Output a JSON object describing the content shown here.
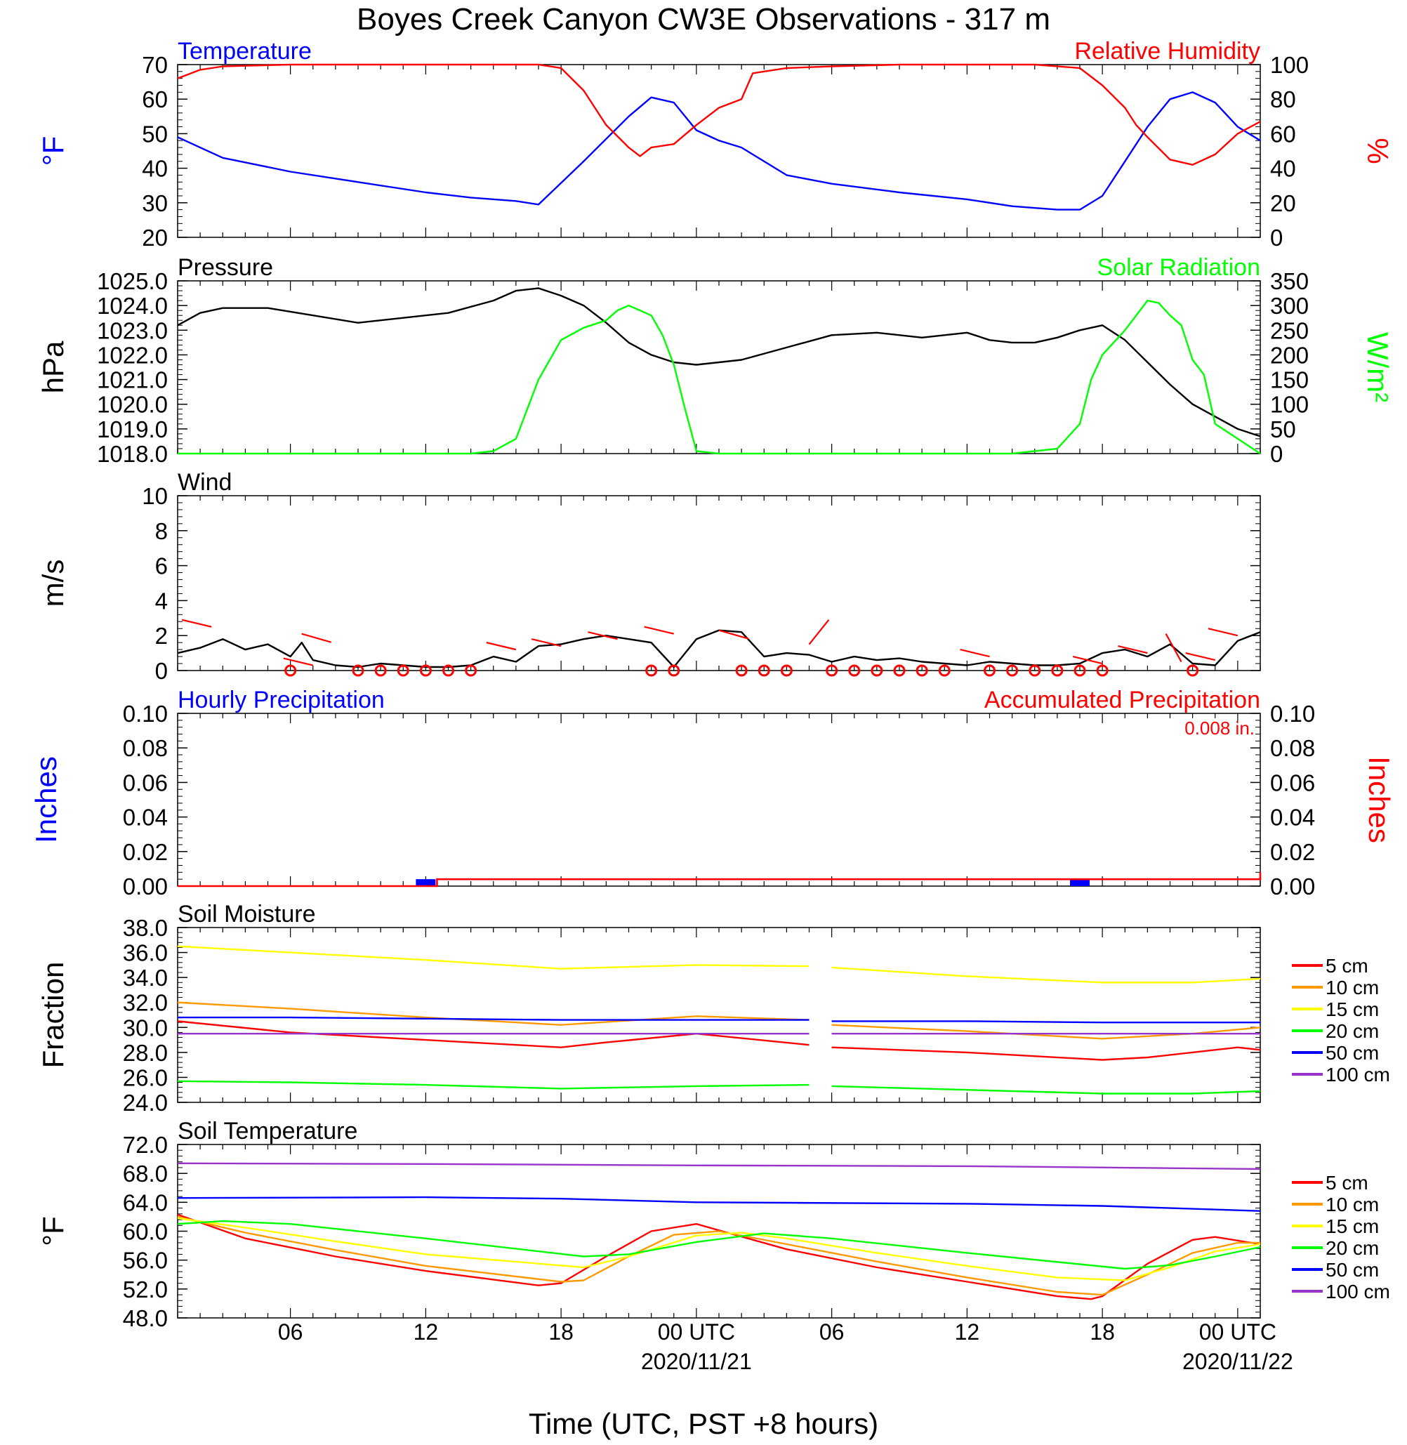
{
  "title": "Boyes Creek Canyon CW3E Observations - 317 m",
  "x_axis": {
    "label": "Time (UTC, PST +8 hours)",
    "ticks": [
      "06",
      "12",
      "18",
      "00 UTC",
      "06",
      "12",
      "18",
      "00 UTC"
    ],
    "tick_hours": [
      6,
      12,
      18,
      24,
      30,
      36,
      42,
      48
    ],
    "dates": [
      "2020/11/21",
      "2020/11/22"
    ],
    "date_hours": [
      24,
      48
    ],
    "range_hours": [
      1,
      49
    ]
  },
  "colors": {
    "temperature": "#0000ff",
    "relative_humidity": "#ff0000",
    "pressure": "#000000",
    "solar": "#00ff00",
    "wind": "#000000",
    "barb": "#ff0000",
    "hourly_precip": "#0000ff",
    "accum_precip": "#ff0000",
    "depth_5cm": "#ff0000",
    "depth_10cm": "#ff9900",
    "depth_15cm": "#ffff00",
    "depth_20cm": "#00ff00",
    "depth_50cm": "#0000ff",
    "depth_100cm": "#9933cc"
  },
  "chart_data": [
    {
      "id": "temp_rh",
      "type": "line",
      "left_label": "Temperature",
      "right_label": "Relative Humidity",
      "ylabel_left": "°F",
      "ylabel_right": "%",
      "ylim_left": [
        20,
        70
      ],
      "ylim_right": [
        0,
        100
      ],
      "yticks_left": [
        "20",
        "30",
        "40",
        "50",
        "60",
        "70"
      ],
      "yticks_right": [
        "0",
        "20",
        "40",
        "60",
        "80",
        "100"
      ],
      "series": [
        {
          "name": "Temperature",
          "axis": "left",
          "color": "#0000ff",
          "x": [
            1,
            3,
            6,
            9,
            12,
            14,
            16,
            17,
            19,
            21,
            22,
            23,
            24,
            25,
            26,
            28,
            30,
            33,
            36,
            38,
            40,
            41,
            42,
            43,
            44,
            45,
            46,
            47,
            48,
            49
          ],
          "y": [
            49,
            43,
            39,
            36,
            33,
            31.5,
            30.5,
            29.5,
            42,
            55,
            60.5,
            59,
            51,
            48,
            46,
            38,
            35.5,
            33,
            31,
            29,
            28,
            28,
            32,
            42,
            52,
            60,
            62,
            59,
            52,
            48
          ]
        },
        {
          "name": "Relative Humidity",
          "axis": "right",
          "color": "#ff0000",
          "x": [
            1,
            2,
            3,
            6,
            9,
            12,
            15,
            17,
            18,
            19,
            20,
            21,
            21.5,
            22,
            23,
            24,
            25,
            26,
            26.5,
            28,
            30,
            33,
            36,
            39,
            41,
            42,
            43,
            43.5,
            44,
            45,
            46,
            47,
            48,
            49
          ],
          "y": [
            92,
            97,
            99,
            100,
            100,
            100,
            100,
            100,
            98,
            85,
            65,
            52,
            47,
            52,
            54,
            65,
            75,
            80,
            95,
            98,
            99,
            100,
            100,
            100,
            98,
            88,
            75,
            65,
            58,
            45,
            42,
            48,
            60,
            67
          ]
        }
      ]
    },
    {
      "id": "pressure_solar",
      "type": "line",
      "left_label": "Pressure",
      "right_label": "Solar Radiation",
      "ylabel_left": "hPa",
      "ylabel_right": "W/m²",
      "ylim_left": [
        1018,
        1025
      ],
      "ylim_right": [
        0,
        350
      ],
      "yticks_left": [
        "1018.0",
        "1019.0",
        "1020.0",
        "1021.0",
        "1022.0",
        "1023.0",
        "1024.0",
        "1025.0"
      ],
      "yticks_right": [
        "0",
        "50",
        "100",
        "150",
        "200",
        "250",
        "300",
        "350"
      ],
      "series": [
        {
          "name": "Pressure",
          "axis": "left",
          "color": "#000000",
          "x": [
            1,
            2,
            3,
            5,
            7,
            9,
            11,
            13,
            15,
            16,
            17,
            18,
            19,
            20,
            21,
            22,
            23,
            24,
            26,
            28,
            30,
            32,
            34,
            36,
            37,
            38,
            39,
            40,
            41,
            42,
            43,
            44,
            45,
            46,
            47,
            48,
            49
          ],
          "y": [
            1023.2,
            1023.7,
            1023.9,
            1023.9,
            1023.6,
            1023.3,
            1023.5,
            1023.7,
            1024.2,
            1024.6,
            1024.7,
            1024.4,
            1024.0,
            1023.3,
            1022.5,
            1022.0,
            1021.7,
            1021.6,
            1021.8,
            1022.3,
            1022.8,
            1022.9,
            1022.7,
            1022.9,
            1022.6,
            1022.5,
            1022.5,
            1022.7,
            1023.0,
            1023.2,
            1022.6,
            1021.7,
            1020.8,
            1020.0,
            1019.5,
            1019.0,
            1018.7
          ]
        },
        {
          "name": "Solar Radiation",
          "axis": "right",
          "color": "#00ff00",
          "x": [
            1,
            14,
            15,
            16,
            17,
            17.5,
            18,
            19,
            20,
            20.5,
            21,
            22,
            22.5,
            23,
            23.5,
            24,
            25,
            26,
            33,
            38,
            40,
            41,
            41.5,
            42,
            43,
            44,
            44.5,
            45,
            45.5,
            46,
            46.5,
            47,
            48,
            49
          ],
          "y": [
            0,
            0,
            5,
            30,
            150,
            190,
            230,
            255,
            270,
            290,
            300,
            280,
            240,
            180,
            90,
            5,
            0,
            0,
            0,
            0,
            10,
            60,
            150,
            200,
            250,
            310,
            305,
            280,
            260,
            190,
            160,
            60,
            30,
            0
          ]
        }
      ]
    },
    {
      "id": "wind",
      "type": "line",
      "left_label": "Wind",
      "ylabel_left": "m/s",
      "ylim_left": [
        0,
        10
      ],
      "yticks_left": [
        "0",
        "2",
        "4",
        "6",
        "8",
        "10"
      ],
      "series": [
        {
          "name": "Wind",
          "axis": "left",
          "color": "#000000",
          "x": [
            1,
            2,
            3,
            4,
            5,
            6,
            6.5,
            7,
            8,
            9,
            10,
            11,
            12,
            13,
            14,
            15,
            16,
            17,
            18,
            19,
            20,
            21,
            22,
            23,
            24,
            25,
            26,
            27,
            28,
            29,
            30,
            31,
            32,
            33,
            34,
            35,
            36,
            37,
            38,
            39,
            40,
            41,
            42,
            43,
            44,
            45,
            46,
            47,
            48,
            49
          ],
          "y": [
            1.0,
            1.3,
            1.8,
            1.2,
            1.5,
            0.8,
            1.6,
            0.6,
            0.3,
            0.2,
            0.4,
            0.3,
            0.2,
            0.2,
            0.3,
            0.8,
            0.5,
            1.4,
            1.5,
            1.8,
            2.0,
            1.8,
            1.6,
            0.2,
            1.8,
            2.3,
            2.2,
            0.8,
            1.0,
            0.9,
            0.5,
            0.8,
            0.6,
            0.7,
            0.5,
            0.4,
            0.3,
            0.5,
            0.4,
            0.3,
            0.3,
            0.4,
            1.0,
            1.2,
            0.8,
            1.5,
            0.4,
            0.3,
            1.7,
            2.2
          ]
        }
      ],
      "barbs": [
        {
          "x": 2.5,
          "y": 2.5,
          "dir": "l"
        },
        {
          "x": 6.5,
          "y": 2.1,
          "dir": "r"
        },
        {
          "x": 7,
          "y": 0.3,
          "dir": "l"
        },
        {
          "x": 16,
          "y": 1.2,
          "dir": "l"
        },
        {
          "x": 18,
          "y": 1.4,
          "dir": "l"
        },
        {
          "x": 20.5,
          "y": 1.8,
          "dir": "l"
        },
        {
          "x": 23,
          "y": 2.1,
          "dir": "l"
        },
        {
          "x": 25,
          "y": 2.3,
          "dir": "r"
        },
        {
          "x": 29,
          "y": 1.5,
          "dir": "u"
        },
        {
          "x": 37,
          "y": 0.8,
          "dir": "l"
        },
        {
          "x": 42,
          "y": 0.4,
          "dir": "l"
        },
        {
          "x": 44,
          "y": 1.0,
          "dir": "l"
        },
        {
          "x": 45.5,
          "y": 0.5,
          "dir": "d"
        },
        {
          "x": 47,
          "y": 0.6,
          "dir": "l"
        },
        {
          "x": 48,
          "y": 2.0,
          "dir": "l"
        }
      ],
      "calm_hours": [
        6,
        9,
        10,
        11,
        12,
        13,
        14,
        22,
        23,
        26,
        27,
        28,
        30,
        31,
        32,
        33,
        34,
        35,
        37,
        38,
        39,
        40,
        41,
        42,
        46
      ]
    },
    {
      "id": "precip",
      "type": "bar",
      "left_label": "Hourly Precipitation",
      "right_label": "Accumulated Precipitation",
      "annotation": "0.008 in.",
      "ylabel_left": "Inches",
      "ylabel_right": "Inches",
      "ylim_left": [
        0,
        0.1
      ],
      "ylim_right": [
        0,
        0.1
      ],
      "yticks_left": [
        "0.00",
        "0.02",
        "0.04",
        "0.06",
        "0.08",
        "0.10"
      ],
      "yticks_right": [
        "0.00",
        "0.02",
        "0.04",
        "0.06",
        "0.08",
        "0.10"
      ],
      "hourly": [
        {
          "x": 12,
          "value": 0.004
        },
        {
          "x": 41,
          "value": 0.004
        }
      ],
      "accumulated": {
        "x": [
          1,
          12,
          12.5,
          42,
          49
        ],
        "y": [
          0,
          0,
          0.004,
          0.004,
          0.008
        ]
      }
    },
    {
      "id": "soil_moisture",
      "type": "line",
      "left_label": "Soil Moisture",
      "ylabel_left": "Fraction",
      "ylim_left": [
        24,
        38
      ],
      "yticks_left": [
        "24.0",
        "26.0",
        "28.0",
        "30.0",
        "32.0",
        "34.0",
        "36.0",
        "38.0"
      ],
      "gap_hours": [
        29,
        30
      ],
      "legend": [
        "5 cm",
        "10 cm",
        "15 cm",
        "20 cm",
        "50 cm",
        "100 cm"
      ],
      "series": [
        {
          "name": "5 cm",
          "color": "#ff0000",
          "x": [
            1,
            6,
            12,
            18,
            20,
            24,
            29,
            30,
            36,
            42,
            44,
            48,
            49
          ],
          "y": [
            30.5,
            29.6,
            29.0,
            28.4,
            28.8,
            29.5,
            28.6,
            28.4,
            28.0,
            27.4,
            27.6,
            28.4,
            28.2
          ]
        },
        {
          "name": "10 cm",
          "color": "#ff9900",
          "x": [
            1,
            6,
            12,
            18,
            24,
            29,
            30,
            36,
            42,
            46,
            49
          ],
          "y": [
            32.0,
            31.5,
            30.8,
            30.2,
            30.9,
            30.6,
            30.2,
            29.7,
            29.1,
            29.5,
            30.0
          ]
        },
        {
          "name": "15 cm",
          "color": "#ffff00",
          "x": [
            1,
            6,
            12,
            18,
            24,
            29,
            30,
            36,
            42,
            46,
            49
          ],
          "y": [
            36.5,
            36.0,
            35.4,
            34.7,
            35.0,
            34.9,
            34.8,
            34.1,
            33.6,
            33.6,
            33.9
          ]
        },
        {
          "name": "20 cm",
          "color": "#00ff00",
          "x": [
            1,
            6,
            12,
            18,
            24,
            29,
            30,
            36,
            42,
            46,
            49
          ],
          "y": [
            25.7,
            25.6,
            25.4,
            25.1,
            25.3,
            25.4,
            25.3,
            25.0,
            24.7,
            24.7,
            24.9
          ]
        },
        {
          "name": "50 cm",
          "color": "#0000ff",
          "x": [
            1,
            6,
            12,
            18,
            24,
            29,
            30,
            36,
            42,
            49
          ],
          "y": [
            30.8,
            30.8,
            30.7,
            30.6,
            30.6,
            30.6,
            30.5,
            30.5,
            30.4,
            30.4
          ]
        },
        {
          "name": "100 cm",
          "color": "#9933cc",
          "x": [
            1,
            6,
            12,
            18,
            24,
            29,
            30,
            36,
            42,
            49
          ],
          "y": [
            29.5,
            29.5,
            29.5,
            29.5,
            29.5,
            29.5,
            29.5,
            29.5,
            29.5,
            29.5
          ]
        }
      ]
    },
    {
      "id": "soil_temperature",
      "type": "line",
      "left_label": "Soil Temperature",
      "ylabel_left": "°F",
      "ylim_left": [
        48,
        72
      ],
      "yticks_left": [
        "48.0",
        "52.0",
        "56.0",
        "60.0",
        "64.0",
        "68.0",
        "72.0"
      ],
      "legend": [
        "5 cm",
        "10 cm",
        "15 cm",
        "20 cm",
        "50 cm",
        "100 cm"
      ],
      "series": [
        {
          "name": "5 cm",
          "color": "#ff0000",
          "x": [
            1,
            4,
            8,
            12,
            17,
            18,
            20,
            22,
            24,
            28,
            32,
            36,
            40,
            41.5,
            42,
            44,
            46,
            47,
            49
          ],
          "y": [
            62.3,
            59.0,
            56.5,
            54.5,
            52.5,
            52.8,
            56.5,
            60.0,
            61.0,
            57.5,
            55.0,
            53.0,
            51.0,
            50.6,
            51.0,
            55.5,
            58.8,
            59.2,
            58.2
          ]
        },
        {
          "name": "10 cm",
          "color": "#ff9900",
          "x": [
            1,
            4,
            8,
            12,
            18,
            19,
            21,
            23,
            25,
            28,
            32,
            36,
            40,
            42,
            44,
            46,
            48,
            49
          ],
          "y": [
            62.0,
            59.8,
            57.4,
            55.2,
            53.0,
            53.2,
            56.5,
            59.5,
            60.0,
            58.2,
            55.8,
            53.6,
            51.6,
            51.2,
            54.0,
            57.0,
            58.4,
            58.4
          ]
        },
        {
          "name": "15 cm",
          "color": "#ffff00",
          "x": [
            1,
            4,
            8,
            12,
            19,
            21,
            24,
            26,
            28,
            32,
            36,
            40,
            43,
            45,
            47,
            49
          ],
          "y": [
            61.8,
            60.5,
            58.6,
            56.8,
            55.0,
            56.5,
            59.4,
            59.8,
            59.0,
            57.0,
            55.2,
            53.6,
            53.2,
            55.0,
            57.2,
            58.2
          ]
        },
        {
          "name": "20 cm",
          "color": "#00ff00",
          "x": [
            1,
            3,
            6,
            12,
            19,
            21,
            24,
            27,
            30,
            36,
            43,
            45,
            47,
            49
          ],
          "y": [
            61.0,
            61.4,
            61.0,
            59.0,
            56.5,
            56.8,
            58.5,
            59.7,
            59.0,
            57.0,
            54.8,
            55.3,
            56.5,
            57.8
          ]
        },
        {
          "name": "50 cm",
          "color": "#0000ff",
          "x": [
            1,
            12,
            18,
            24,
            36,
            42,
            49
          ],
          "y": [
            64.6,
            64.7,
            64.5,
            64.0,
            63.8,
            63.5,
            62.8
          ]
        },
        {
          "name": "100 cm",
          "color": "#9933cc",
          "x": [
            1,
            12,
            24,
            36,
            49
          ],
          "y": [
            69.4,
            69.3,
            69.1,
            69.0,
            68.6
          ]
        }
      ]
    }
  ]
}
